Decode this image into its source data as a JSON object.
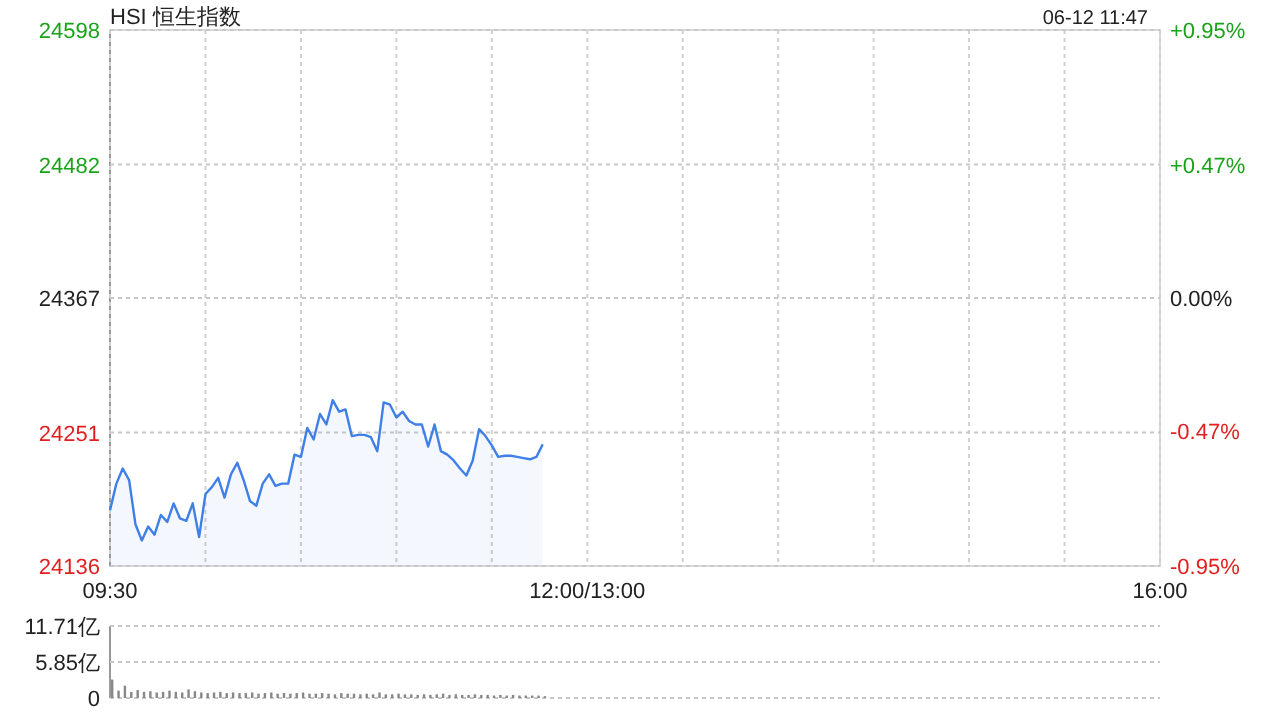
{
  "chart_data": [
    {
      "type": "area",
      "title": "HSI 恒生指数",
      "annotations": [
        "06-12 11:47"
      ],
      "categories": [
        "09:30",
        null,
        null,
        null,
        null,
        null,
        null,
        null,
        null,
        null,
        null,
        null,
        null,
        null,
        null,
        null,
        null,
        null,
        null,
        null,
        null,
        null,
        null,
        null,
        null,
        null,
        null,
        null,
        null,
        null,
        null,
        null,
        null,
        null,
        null,
        null,
        null,
        null,
        null,
        null,
        null,
        null,
        null,
        null,
        null,
        null,
        null,
        null,
        null,
        null,
        null,
        null,
        null,
        null,
        null,
        null,
        null,
        null,
        null,
        null,
        null,
        null,
        null,
        null,
        null,
        null,
        null,
        null,
        null,
        null,
        null,
        null,
        null,
        null,
        null,
        "12:00/13:00",
        null,
        null,
        null,
        null,
        null,
        null,
        null,
        null,
        null,
        null,
        null,
        null,
        null,
        null,
        null,
        null,
        null,
        null,
        null,
        null,
        null,
        null,
        null,
        null,
        null,
        null,
        null,
        null,
        null,
        null,
        null,
        null,
        null,
        null,
        null,
        null,
        null,
        null,
        null,
        null,
        null,
        null,
        null,
        null,
        null,
        null,
        null,
        null,
        null,
        null,
        null,
        null,
        null,
        null,
        null,
        null,
        null,
        null,
        null,
        null,
        null,
        null,
        null,
        null,
        null,
        null,
        null,
        null,
        null,
        null,
        null,
        null,
        null,
        null,
        null,
        null,
        null,
        null,
        null,
        null,
        null,
        null,
        null,
        null,
        null,
        null,
        null,
        null,
        null,
        "16:00"
      ],
      "series": [
        {
          "color": "#3f7fe8",
          "values": [
            24184,
            24207,
            24220,
            24210,
            24172,
            24158,
            24170,
            24163,
            24180,
            24174,
            24190,
            24177,
            24175,
            24190,
            24161,
            24198,
            24204,
            24212,
            24195,
            24215,
            24225,
            24210,
            24192,
            24188,
            24207,
            24215,
            24205,
            24207,
            24207,
            24232,
            24230,
            24255,
            24245,
            24267,
            24258,
            24279,
            24269,
            24271,
            24248,
            24249,
            24249,
            24247,
            24235,
            24277,
            24275,
            24264,
            24269,
            24261,
            24258,
            24258,
            24239,
            24258,
            24235,
            24232,
            24227,
            24220,
            24214,
            24227,
            24254,
            24248,
            24240,
            24230,
            24231,
            24231,
            24230,
            24229,
            24228,
            24230,
            24241,
            null,
            null,
            null,
            null,
            null,
            null,
            null,
            null,
            null,
            null,
            null,
            null,
            null,
            null,
            null,
            null,
            null,
            null,
            null,
            null,
            null,
            null,
            null,
            null,
            null,
            null,
            null,
            null,
            null,
            null,
            null,
            null,
            null,
            null,
            null,
            null,
            null,
            null,
            null,
            null,
            null,
            null,
            null,
            null,
            null,
            null,
            null,
            null,
            null,
            null,
            null,
            null,
            null,
            null,
            null,
            null,
            null,
            null,
            null,
            null,
            null,
            null,
            null,
            null,
            null,
            null,
            null,
            null,
            null,
            null,
            null,
            null,
            null,
            null,
            null,
            null,
            null,
            null,
            null,
            null,
            null,
            null,
            null,
            null,
            null,
            null,
            null,
            null,
            null,
            null,
            null,
            null,
            null,
            null,
            null,
            null,
            null
          ]
        }
      ],
      "ylim": [
        24136,
        24598
      ],
      "yticks": [
        24136,
        24251,
        24367,
        24482,
        24598
      ],
      "y2lim": [
        -0.95,
        0.95
      ],
      "y2ticks": [
        {
          "value": 0.95,
          "label": "+0.95%"
        },
        {
          "value": 0.47,
          "label": "+0.47%"
        },
        {
          "value": 0,
          "label": "0.00%"
        },
        {
          "value": -0.47,
          "label": "-0.47%"
        },
        {
          "value": -0.95,
          "label": "-0.95%"
        }
      ],
      "grid": true
    },
    {
      "type": "bar",
      "categories": [
        null,
        null,
        null,
        null,
        null,
        null,
        null,
        null,
        null,
        null,
        null,
        null,
        null,
        null,
        null,
        null,
        null,
        null,
        null,
        null,
        null,
        null,
        null,
        null,
        null,
        null,
        null,
        null,
        null,
        null,
        null,
        null,
        null,
        null,
        null,
        null,
        null,
        null,
        null,
        null,
        null,
        null,
        null,
        null,
        null,
        null,
        null,
        null,
        null,
        null,
        null,
        null,
        null,
        null,
        null,
        null,
        null,
        null,
        null,
        null,
        null,
        null,
        null,
        null,
        null,
        null,
        null,
        null,
        null,
        null,
        null,
        null,
        null,
        null,
        null,
        null,
        null,
        null,
        null,
        null,
        null,
        null,
        null,
        null,
        null,
        null,
        null,
        null,
        null,
        null,
        null,
        null,
        null,
        null,
        null,
        null,
        null,
        null,
        null,
        null,
        null,
        null,
        null,
        null,
        null,
        null,
        null,
        null,
        null,
        null,
        null,
        null,
        null,
        null,
        null,
        null,
        null,
        null,
        null,
        null,
        null,
        null,
        null,
        null,
        null,
        null,
        null,
        null,
        null,
        null,
        null,
        null,
        null,
        null,
        null,
        null,
        null,
        null,
        null,
        null,
        null,
        null,
        null,
        null,
        null,
        null,
        null,
        null,
        null,
        null,
        null,
        null,
        null,
        null,
        null,
        null,
        null,
        null,
        null,
        null,
        null,
        null,
        null,
        null,
        null,
        null
      ],
      "series": [
        {
          "color": "#888888",
          "values": [
            3.0,
            1.2,
            2.0,
            1.0,
            1.3,
            1.0,
            1.1,
            0.9,
            1.0,
            1.2,
            1.0,
            0.9,
            1.4,
            1.1,
            0.9,
            0.8,
            0.9,
            1.0,
            0.8,
            0.9,
            0.8,
            0.8,
            0.9,
            0.7,
            0.8,
            0.9,
            0.7,
            0.8,
            0.7,
            0.8,
            0.9,
            0.7,
            0.7,
            0.8,
            0.7,
            0.6,
            0.8,
            0.7,
            0.7,
            0.6,
            0.7,
            0.6,
            0.9,
            0.6,
            0.6,
            0.7,
            0.6,
            0.6,
            0.5,
            0.6,
            0.5,
            0.6,
            0.7,
            0.5,
            0.6,
            0.5,
            0.5,
            0.6,
            0.5,
            0.5,
            0.4,
            0.5,
            0.4,
            0.5,
            0.4,
            0.4,
            0.4,
            0.4,
            0.3,
            null,
            null,
            null,
            null,
            null,
            null,
            null,
            null,
            null,
            null,
            null,
            null,
            null,
            null,
            null,
            null,
            null,
            null,
            null,
            null,
            null,
            null,
            null,
            null,
            null,
            null,
            null,
            null,
            null,
            null,
            null,
            null,
            null,
            null,
            null,
            null,
            null,
            null,
            null,
            null,
            null,
            null,
            null,
            null,
            null,
            null,
            null,
            null,
            null,
            null,
            null,
            null,
            null,
            null,
            null,
            null,
            null,
            null,
            null,
            null,
            null,
            null,
            null,
            null,
            null,
            null,
            null,
            null,
            null,
            null,
            null,
            null,
            null,
            null,
            null,
            null,
            null,
            null,
            null,
            null,
            null,
            null,
            null,
            null,
            null,
            null,
            null,
            null,
            null,
            null,
            null,
            null,
            null,
            null,
            null,
            null,
            null
          ]
        }
      ],
      "ylim": [
        0,
        11.71
      ],
      "yticks": [
        0,
        {
          "value": 5.85,
          "label": "5.85亿"
        },
        {
          "value": 11.71,
          "label": "11.71亿"
        }
      ],
      "grid": "y",
      "tick_labels": "y"
    }
  ]
}
